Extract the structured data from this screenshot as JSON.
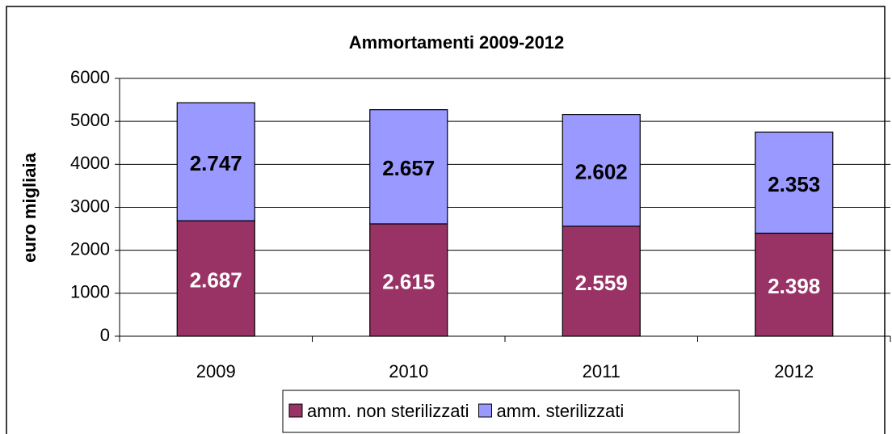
{
  "chart_data": {
    "type": "stacked_bar",
    "title": "Ammortamenti 2009-2012",
    "y_label": "euro migliaia",
    "categories": [
      "2009",
      "2010",
      "2011",
      "2012"
    ],
    "series": [
      {
        "name": "amm. non sterilizzati",
        "color": "#993366",
        "values": [
          2687,
          2615,
          2559,
          2398
        ],
        "value_labels": [
          "2.687",
          "2.615",
          "2.559",
          "2.398"
        ],
        "label_color": "#ffffff"
      },
      {
        "name": "amm. sterilizzati",
        "color": "#9999ff",
        "values": [
          2747,
          2657,
          2602,
          2353
        ],
        "value_labels": [
          "2.747",
          "2.657",
          "2.602",
          "2.353"
        ],
        "label_color": "#000000"
      }
    ],
    "ylim": [
      0,
      6000
    ],
    "yticks": [
      0,
      1000,
      2000,
      3000,
      4000,
      5000,
      6000
    ],
    "grid": true,
    "legend": "bottom"
  }
}
